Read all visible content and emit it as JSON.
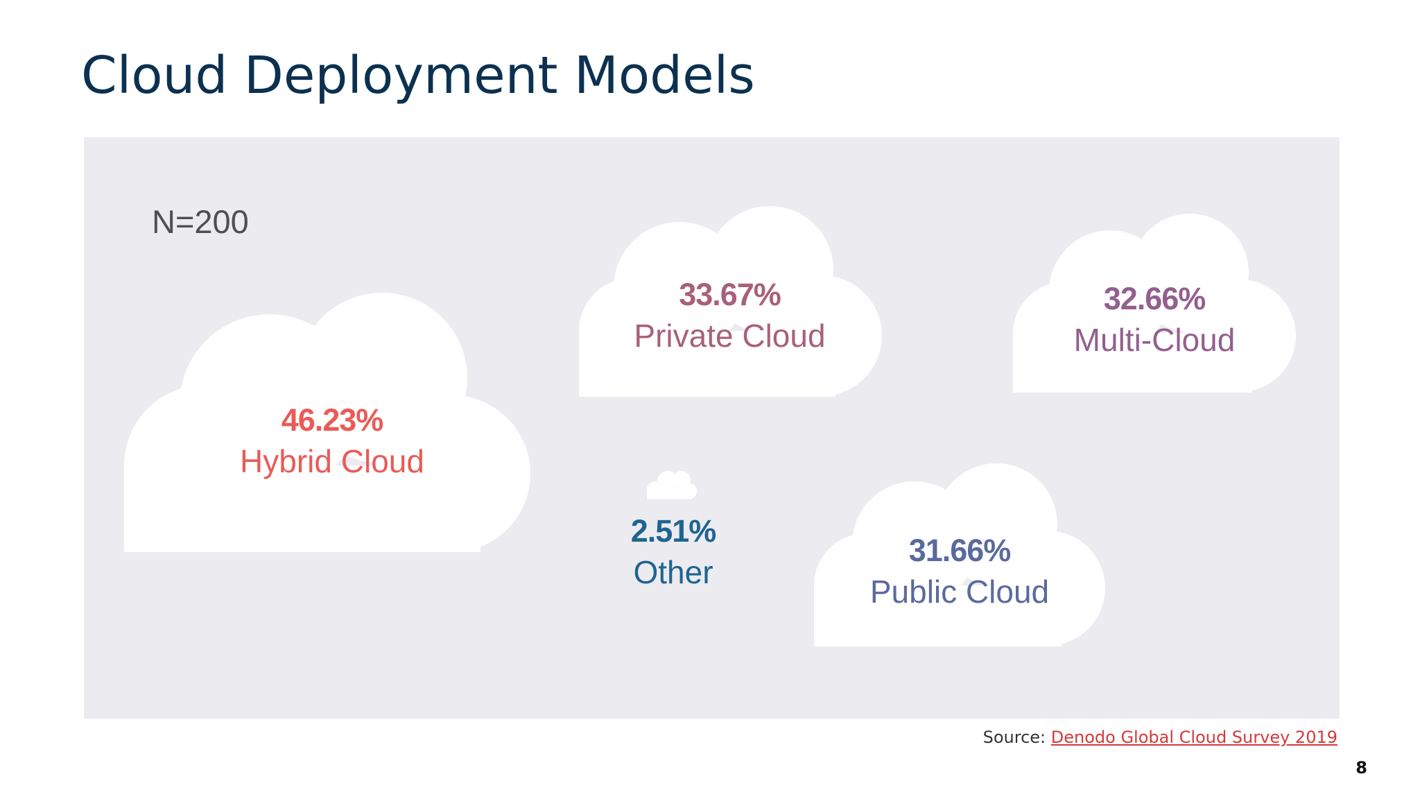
{
  "slide": {
    "title": "Cloud Deployment Models",
    "page_number": "8"
  },
  "panel": {
    "sample_size": "N=200",
    "background": "#ebebf0"
  },
  "clouds": {
    "hybrid": {
      "percent": "46.23%",
      "label": "Hybrid Cloud",
      "color": "#e95b57"
    },
    "private": {
      "percent": "33.67%",
      "label": "Private Cloud",
      "color": "#a8607a"
    },
    "multi": {
      "percent": "32.66%",
      "label": "Multi-Cloud",
      "color": "#935f8f"
    },
    "other": {
      "percent": "2.51%",
      "label": "Other",
      "color": "#1f6490"
    },
    "public": {
      "percent": "31.66%",
      "label": "Public Cloud",
      "color": "#5b6a9c"
    }
  },
  "source": {
    "prefix": "Source: ",
    "link_text": "Denodo Global Cloud Survey 2019 "
  },
  "icons": {
    "cloud_shape": "cloud-icon"
  }
}
